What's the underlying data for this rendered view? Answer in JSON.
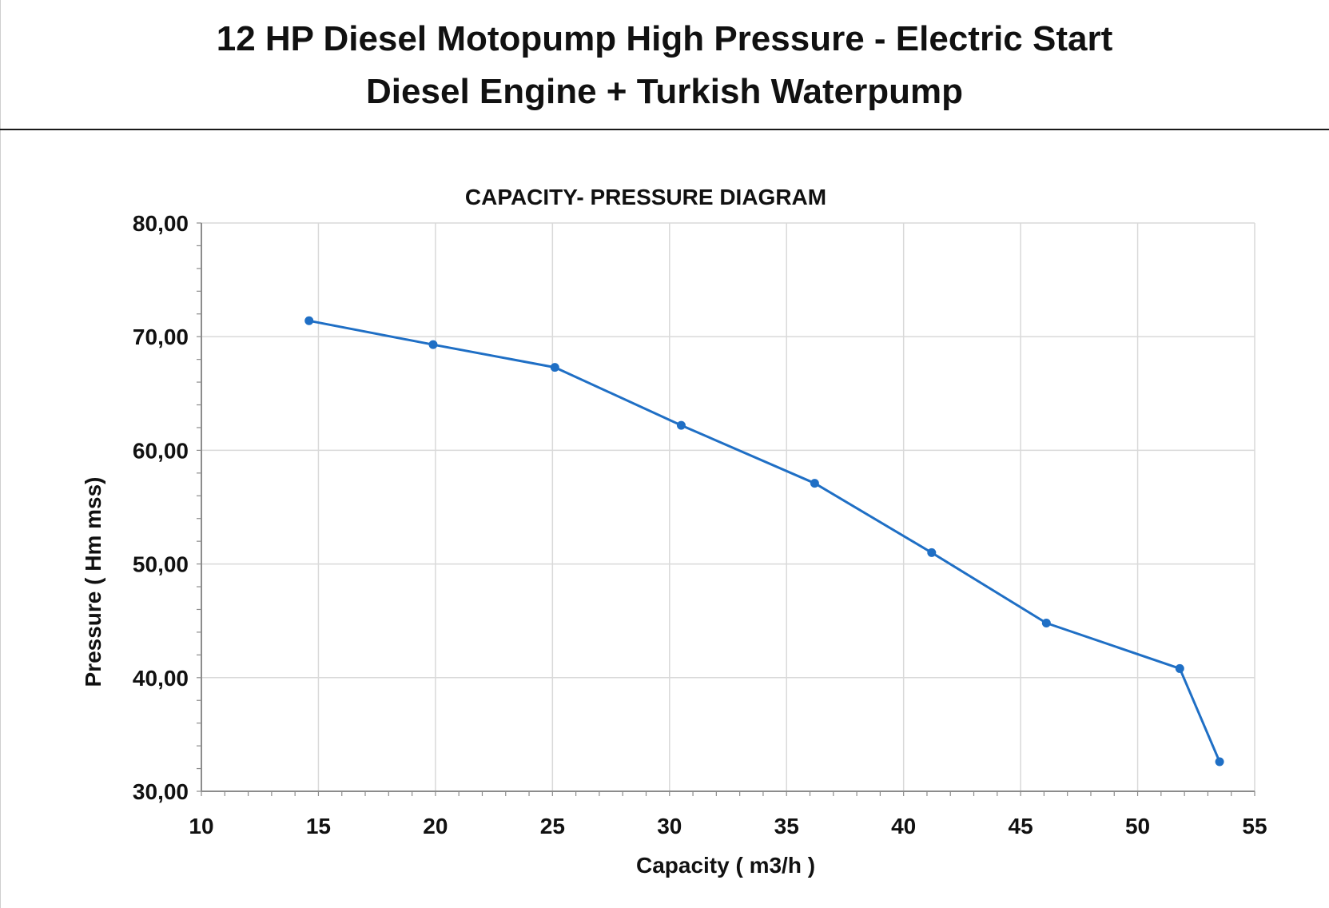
{
  "header": {
    "line1": "12  HP Diesel  Motopump High Pressure  - Electric Start",
    "line2": "Diesel Engine + Turkish Waterpump"
  },
  "colors": {
    "series": "#1f6fc5",
    "grid": "#d9d9d9",
    "axis": "#8c8c8c",
    "text": "#111111"
  },
  "chart_data": {
    "type": "line",
    "title": "CAPACITY- PRESSURE DIAGRAM",
    "xlabel": "Capacity ( m3/h )",
    "ylabel": "Pressure ( Hm mss)",
    "xlim": [
      10,
      55
    ],
    "ylim": [
      30,
      80
    ],
    "xticks": [
      "10",
      "15",
      "20",
      "25",
      "30",
      "35",
      "40",
      "45",
      "50",
      "55"
    ],
    "yticks": [
      "30,00",
      "40,00",
      "50,00",
      "60,00",
      "70,00",
      "80,00"
    ],
    "grid": true,
    "legend": "none",
    "series": [
      {
        "x": [
          14.6,
          19.9,
          25.1,
          30.5,
          36.2,
          41.2,
          46.1,
          51.8,
          53.5
        ],
        "y": [
          71.4,
          69.3,
          67.3,
          62.2,
          57.1,
          51.0,
          44.8,
          40.8,
          32.6
        ]
      }
    ]
  }
}
